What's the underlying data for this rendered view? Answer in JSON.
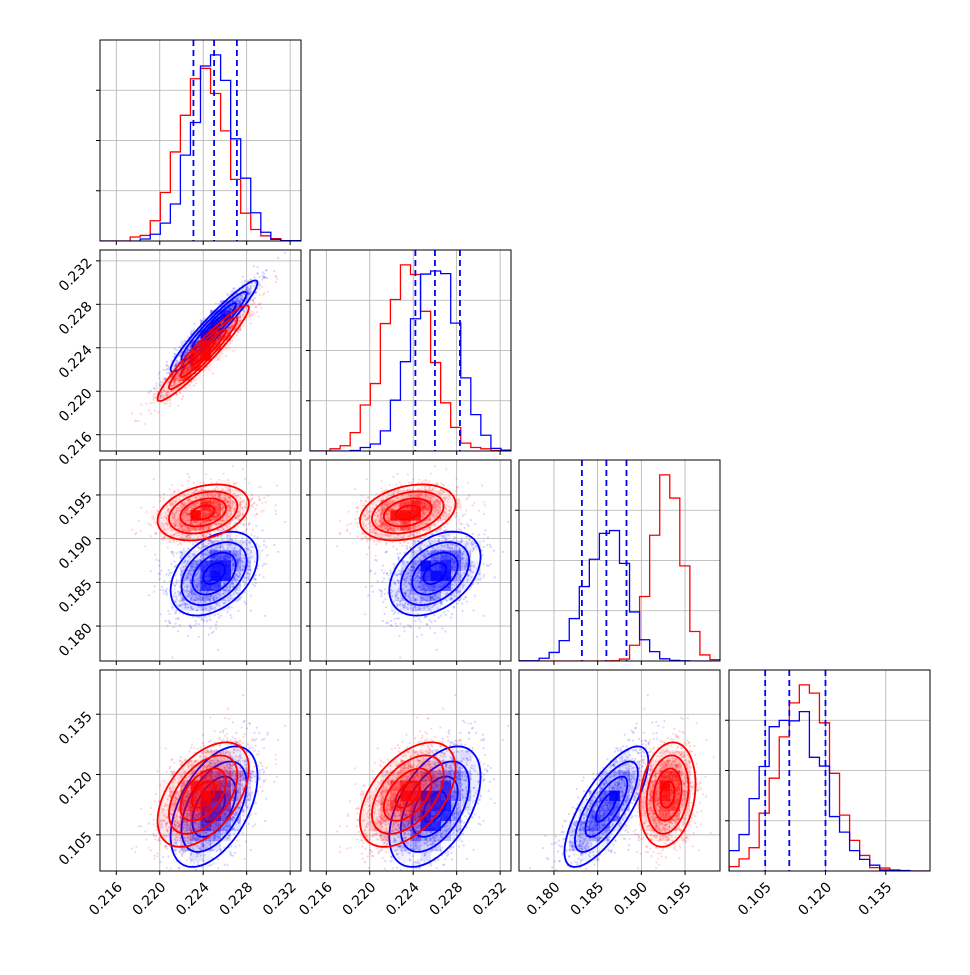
{
  "chart_data": {
    "type": "corner",
    "parameters": 4,
    "series": [
      {
        "color": "#0000ff",
        "mean": [
          0.225,
          0.226,
          0.186,
          0.112
        ],
        "sd": [
          0.002,
          0.0021,
          0.0024,
          0.0075
        ],
        "corr": [
          [
            1.0,
            0.95,
            0.4,
            0.5
          ],
          [
            0.95,
            1.0,
            0.4,
            0.5
          ],
          [
            0.4,
            0.4,
            1.0,
            0.75
          ],
          [
            0.5,
            0.5,
            0.75,
            1.0
          ]
        ],
        "quantiles": [
          [
            0.2231,
            0.225,
            0.2271
          ],
          [
            0.2242,
            0.226,
            0.2283
          ],
          [
            0.1832,
            0.186,
            0.1883
          ],
          [
            0.105,
            0.111,
            0.12
          ]
        ]
      },
      {
        "color": "#ff0000",
        "mean": [
          0.224,
          0.2235,
          0.193,
          0.115
        ],
        "sd": [
          0.0021,
          0.0022,
          0.0016,
          0.0065
        ],
        "corr": [
          [
            1.0,
            0.95,
            0.3,
            0.5
          ],
          [
            0.95,
            1.0,
            0.3,
            0.5
          ],
          [
            0.3,
            0.3,
            1.0,
            0.2
          ],
          [
            0.5,
            0.5,
            0.2,
            1.0
          ]
        ]
      }
    ],
    "axes": [
      {
        "range": [
          0.2145,
          0.233
        ],
        "ticks": [
          0.216,
          0.22,
          0.224,
          0.228,
          0.232
        ],
        "tick_labels": [
          "0.216",
          "0.220",
          "0.224",
          "0.228",
          "0.232"
        ]
      },
      {
        "range": [
          0.2145,
          0.233
        ],
        "ticks": [
          0.216,
          0.22,
          0.224,
          0.228,
          0.232
        ],
        "tick_labels": [
          "0.216",
          "0.220",
          "0.224",
          "0.228",
          "0.232"
        ]
      },
      {
        "range": [
          0.176,
          0.199
        ],
        "ticks": [
          0.18,
          0.185,
          0.19,
          0.195
        ],
        "tick_labels": [
          "0.180",
          "0.185",
          "0.190",
          "0.195"
        ]
      },
      {
        "range": [
          0.096,
          0.146
        ],
        "ticks": [
          0.105,
          0.12,
          0.135
        ],
        "tick_labels": [
          "0.105",
          "0.120",
          "0.135"
        ]
      }
    ],
    "grid": true,
    "diagonal": "step-histogram",
    "off_diagonal": "scatter-with-density-contours",
    "quantile_lines": "dashed, blue series"
  }
}
